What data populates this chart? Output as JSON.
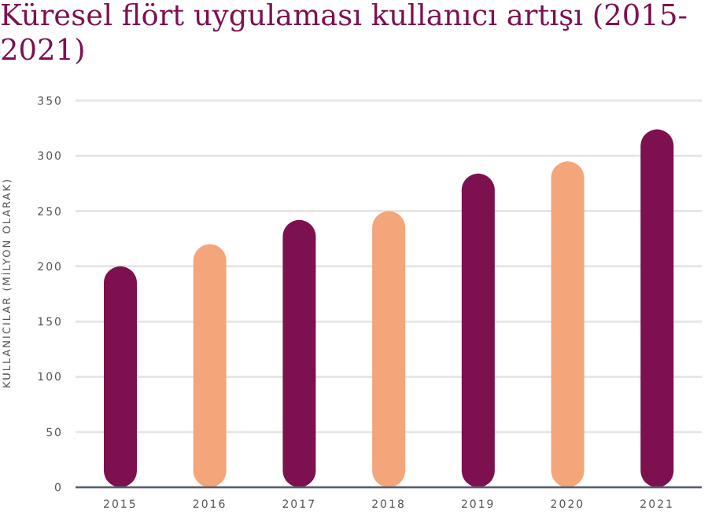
{
  "chart_data": {
    "type": "bar",
    "title": "Küresel flört uygulaması kullanıcı artışı (2015-2021)",
    "ylabel": "KULLANICILAR (MİLYON OLARAK)",
    "categories": [
      "2015",
      "2016",
      "2017",
      "2018",
      "2019",
      "2020",
      "2021"
    ],
    "values": [
      200,
      220,
      242,
      250,
      284,
      295,
      324
    ],
    "colors": [
      "#7d1150",
      "#f4a57a",
      "#7d1150",
      "#f4a57a",
      "#7d1150",
      "#f4a57a",
      "#7d1150"
    ],
    "ylim": [
      0,
      350
    ],
    "yticks": [
      0,
      50,
      100,
      150,
      200,
      250,
      300,
      350
    ],
    "grid": "y"
  }
}
